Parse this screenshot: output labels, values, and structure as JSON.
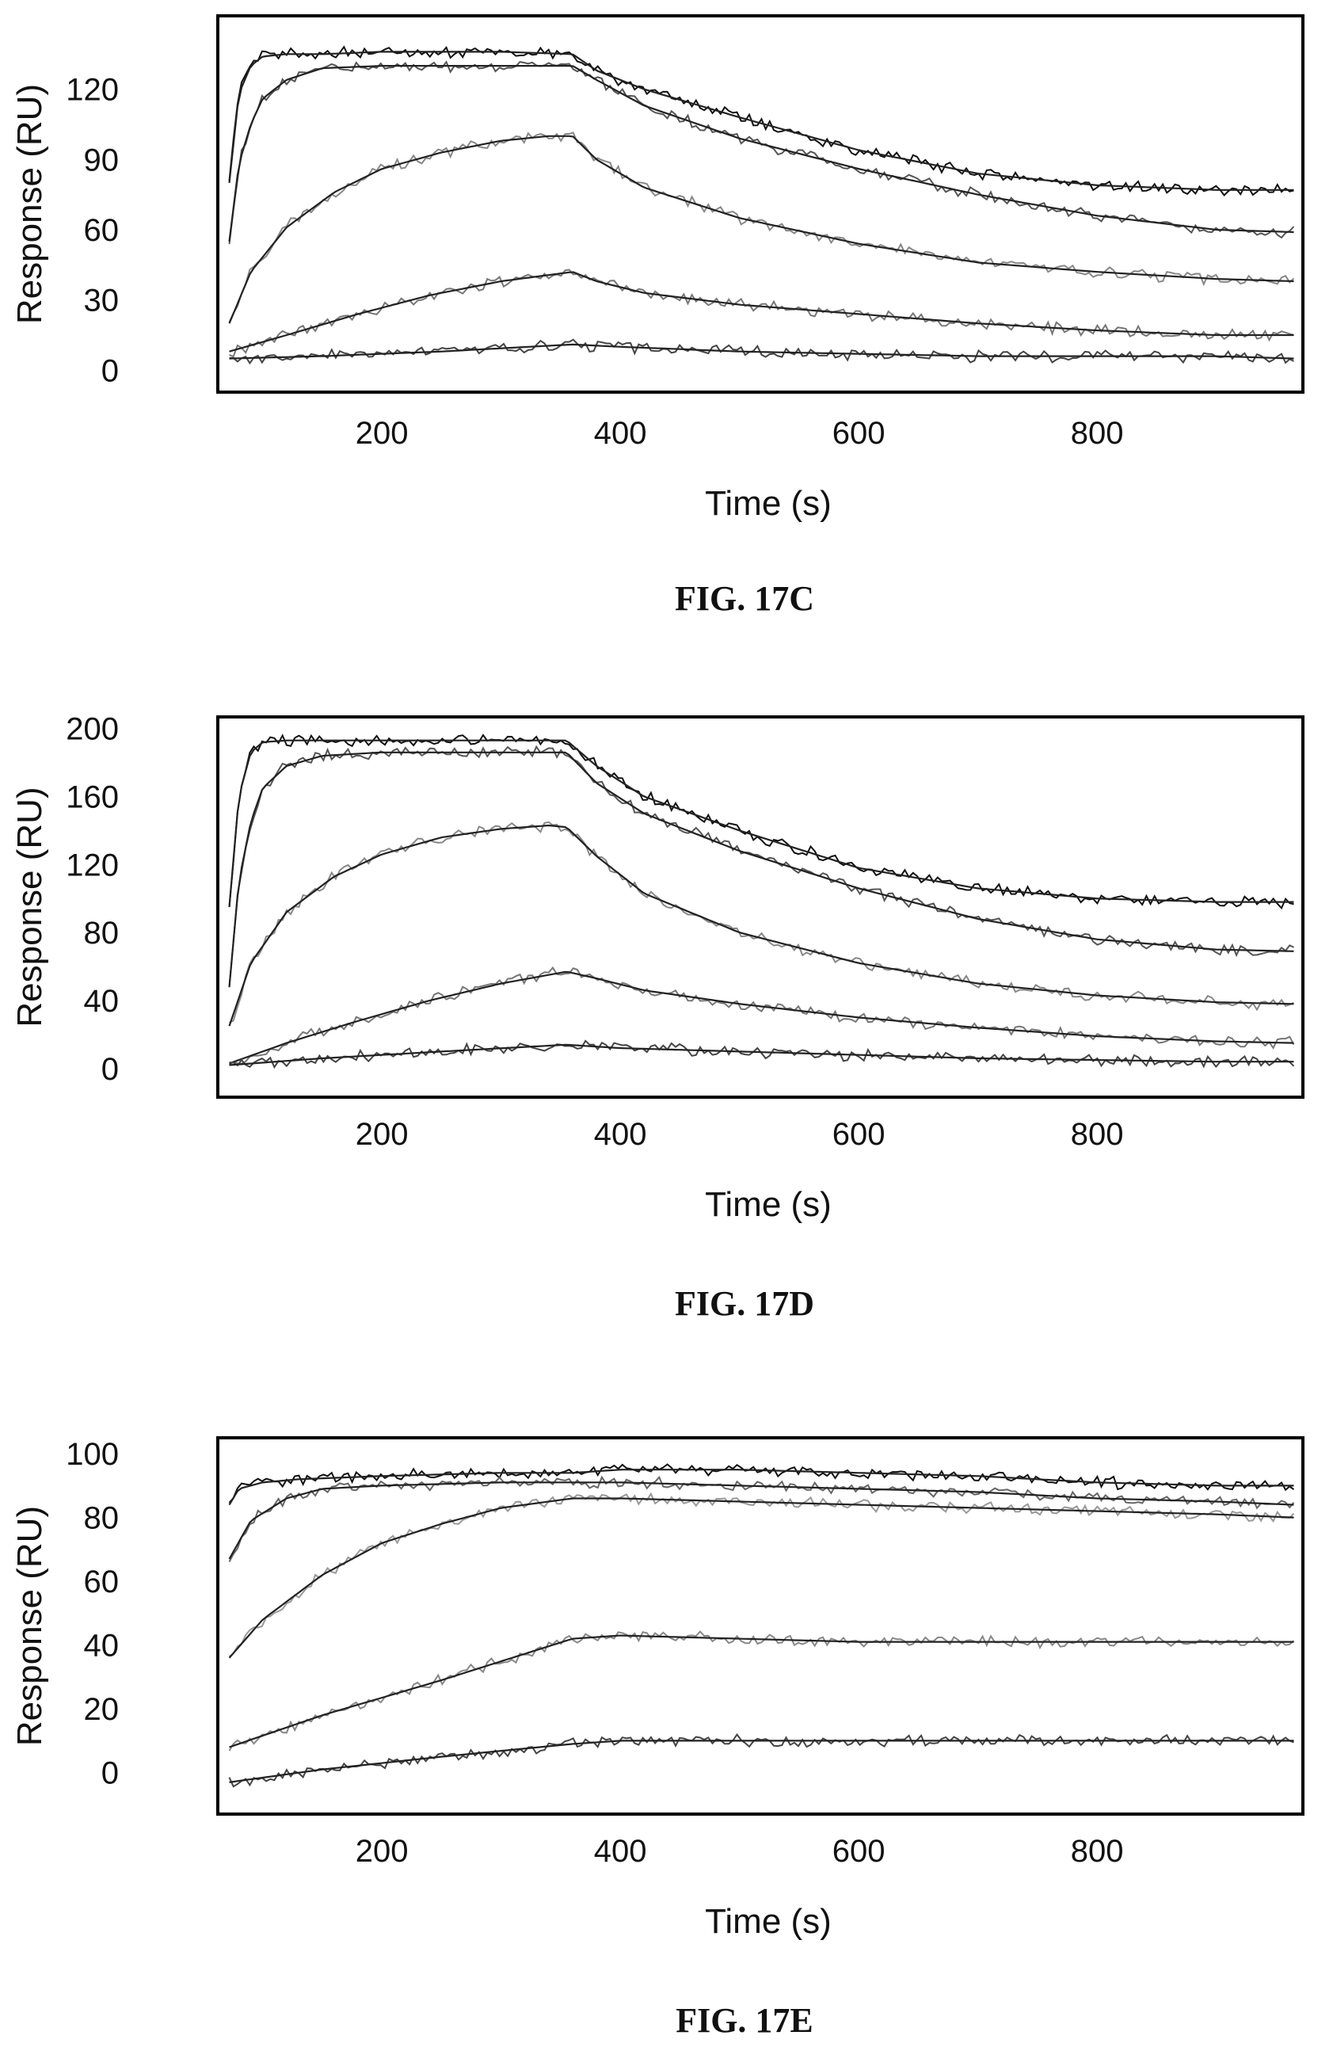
{
  "chart_data": [
    {
      "type": "line",
      "caption": "FIG. 17C",
      "xlabel": "Time (s)",
      "ylabel": "Response (RU)",
      "xlim": [
        65,
        970
      ],
      "ylim": [
        -8,
        150
      ],
      "xticks": [
        200,
        400,
        600,
        800
      ],
      "yticks": [
        0,
        30,
        60,
        90,
        120
      ],
      "grid": false,
      "legend": "none",
      "injection_end_s": 360,
      "series": [
        {
          "color": "#111111",
          "x": [
            72,
            80,
            90,
            100,
            120,
            150,
            200,
            250,
            300,
            360,
            380,
            420,
            500,
            600,
            700,
            800,
            900,
            965
          ],
          "y": [
            80,
            118,
            130,
            134,
            135,
            135,
            136,
            136,
            136,
            135,
            128,
            120,
            108,
            94,
            84,
            79,
            77,
            77
          ]
        },
        {
          "color": "#555555",
          "x": [
            72,
            80,
            90,
            100,
            120,
            150,
            200,
            250,
            300,
            360,
            380,
            420,
            500,
            600,
            700,
            800,
            900,
            965
          ],
          "y": [
            55,
            88,
            105,
            116,
            124,
            129,
            130,
            130,
            130,
            130,
            124,
            113,
            99,
            86,
            75,
            66,
            60,
            59
          ]
        },
        {
          "color": "#888888",
          "x": [
            72,
            90,
            120,
            160,
            200,
            250,
            300,
            340,
            360,
            380,
            420,
            500,
            600,
            700,
            800,
            900,
            965
          ],
          "y": [
            20,
            42,
            61,
            76,
            86,
            93,
            98,
            100,
            100,
            90,
            78,
            65,
            54,
            46,
            42,
            39,
            38
          ]
        },
        {
          "color": "#777777",
          "x": [
            72,
            120,
            180,
            240,
            300,
            360,
            380,
            420,
            500,
            600,
            700,
            800,
            900,
            965
          ],
          "y": [
            8,
            15,
            24,
            32,
            38,
            42,
            38,
            33,
            28,
            24,
            20,
            17,
            15,
            15
          ]
        },
        {
          "color": "#444444",
          "x": [
            72,
            150,
            250,
            360,
            400,
            500,
            600,
            700,
            800,
            900,
            965
          ],
          "y": [
            5,
            6,
            8,
            11,
            10,
            8,
            7,
            6,
            6,
            6,
            5
          ]
        }
      ]
    },
    {
      "type": "line",
      "caption": "FIG. 17D",
      "xlabel": "Time (s)",
      "ylabel": "Response (RU)",
      "xlim": [
        65,
        970
      ],
      "ylim": [
        -15,
        205
      ],
      "xticks": [
        200,
        400,
        600,
        800
      ],
      "yticks": [
        0,
        40,
        80,
        120,
        160,
        200
      ],
      "grid": false,
      "legend": "none",
      "injection_end_s": 355,
      "series": [
        {
          "color": "#111111",
          "x": [
            72,
            80,
            90,
            100,
            120,
            150,
            200,
            250,
            300,
            355,
            380,
            420,
            500,
            600,
            700,
            800,
            900,
            965
          ],
          "y": [
            95,
            160,
            186,
            192,
            193,
            193,
            193,
            193,
            193,
            193,
            178,
            160,
            140,
            118,
            106,
            100,
            98,
            98
          ]
        },
        {
          "color": "#555555",
          "x": [
            72,
            80,
            90,
            100,
            120,
            150,
            200,
            250,
            300,
            355,
            380,
            420,
            500,
            600,
            700,
            800,
            900,
            965
          ],
          "y": [
            48,
            110,
            145,
            165,
            178,
            184,
            186,
            186,
            186,
            186,
            168,
            150,
            128,
            106,
            88,
            76,
            70,
            69
          ]
        },
        {
          "color": "#888888",
          "x": [
            72,
            90,
            120,
            160,
            200,
            250,
            300,
            340,
            355,
            380,
            420,
            500,
            600,
            700,
            800,
            900,
            965
          ],
          "y": [
            25,
            62,
            92,
            113,
            126,
            136,
            141,
            143,
            142,
            125,
            103,
            80,
            62,
            50,
            43,
            39,
            38
          ]
        },
        {
          "color": "#777777",
          "x": [
            72,
            120,
            180,
            240,
            300,
            355,
            380,
            420,
            500,
            600,
            700,
            800,
            900,
            965
          ],
          "y": [
            3,
            15,
            28,
            40,
            50,
            57,
            53,
            46,
            38,
            30,
            24,
            19,
            16,
            15
          ]
        },
        {
          "color": "#444444",
          "x": [
            72,
            150,
            250,
            355,
            400,
            500,
            600,
            700,
            800,
            900,
            965
          ],
          "y": [
            2,
            6,
            10,
            14,
            12,
            10,
            8,
            6,
            5,
            4,
            4
          ]
        }
      ]
    },
    {
      "type": "line",
      "caption": "FIG. 17E",
      "xlabel": "Time (s)",
      "ylabel": "Response (RU)",
      "xlim": [
        65,
        970
      ],
      "ylim": [
        -12,
        104
      ],
      "xticks": [
        200,
        400,
        600,
        800
      ],
      "yticks": [
        0,
        20,
        40,
        60,
        80,
        100
      ],
      "grid": false,
      "legend": "none",
      "injection_end_s": 360,
      "series": [
        {
          "color": "#111111",
          "x": [
            72,
            80,
            90,
            100,
            130,
            200,
            300,
            360,
            400,
            500,
            600,
            700,
            800,
            900,
            965
          ],
          "y": [
            84,
            89,
            90,
            91,
            92,
            93,
            94,
            94,
            95,
            95,
            94,
            93,
            91,
            90,
            90
          ]
        },
        {
          "color": "#666666",
          "x": [
            72,
            90,
            120,
            150,
            200,
            300,
            360,
            400,
            500,
            600,
            700,
            800,
            900,
            965
          ],
          "y": [
            67,
            79,
            86,
            89,
            90,
            91,
            91,
            91,
            90,
            89,
            88,
            86,
            85,
            84
          ]
        },
        {
          "color": "#999999",
          "x": [
            72,
            100,
            150,
            200,
            250,
            300,
            360,
            400,
            500,
            600,
            700,
            800,
            900,
            965
          ],
          "y": [
            36,
            48,
            62,
            72,
            78,
            83,
            86,
            86,
            85,
            84,
            83,
            82,
            81,
            80
          ]
        },
        {
          "color": "#888888",
          "x": [
            72,
            150,
            250,
            360,
            400,
            500,
            600,
            700,
            800,
            900,
            965
          ],
          "y": [
            8,
            18,
            29,
            42,
            43,
            42,
            41,
            41,
            41,
            41,
            41
          ]
        },
        {
          "color": "#444444",
          "x": [
            72,
            150,
            250,
            360,
            400,
            500,
            600,
            700,
            800,
            900,
            965
          ],
          "y": [
            -3,
            1,
            5,
            9,
            10,
            10,
            10,
            10,
            10,
            10,
            10
          ]
        }
      ]
    }
  ]
}
